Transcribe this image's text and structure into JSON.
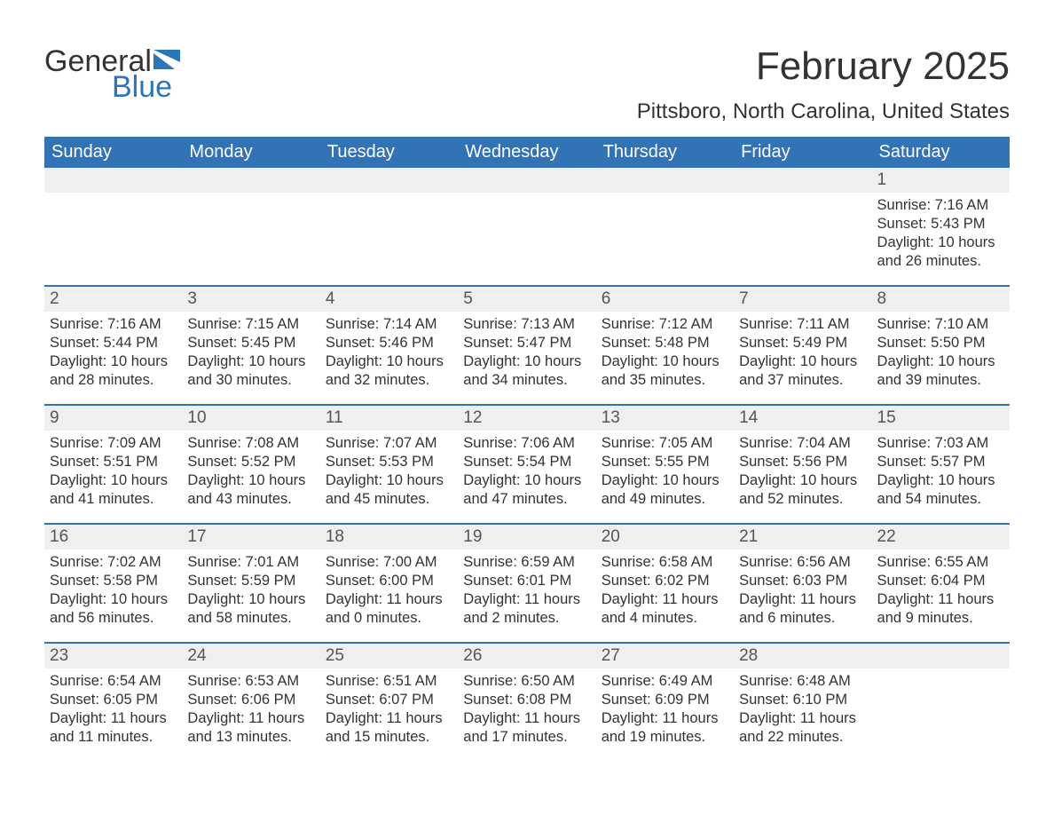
{
  "logo": {
    "text1": "General",
    "text2": "Blue",
    "flag_color": "#2a76b8"
  },
  "header": {
    "month_title": "February 2025",
    "location": "Pittsboro, North Carolina, United States"
  },
  "colors": {
    "header_bg": "#3173b4",
    "header_text": "#ffffff",
    "daynum_bg": "#efefef",
    "row_border": "#3173b4",
    "body_text": "#333333",
    "background": "#ffffff"
  },
  "day_names": [
    "Sunday",
    "Monday",
    "Tuesday",
    "Wednesday",
    "Thursday",
    "Friday",
    "Saturday"
  ],
  "weeks": [
    [
      {
        "n": "",
        "sr": "",
        "ss": "",
        "dl": ""
      },
      {
        "n": "",
        "sr": "",
        "ss": "",
        "dl": ""
      },
      {
        "n": "",
        "sr": "",
        "ss": "",
        "dl": ""
      },
      {
        "n": "",
        "sr": "",
        "ss": "",
        "dl": ""
      },
      {
        "n": "",
        "sr": "",
        "ss": "",
        "dl": ""
      },
      {
        "n": "",
        "sr": "",
        "ss": "",
        "dl": ""
      },
      {
        "n": "1",
        "sr": "Sunrise: 7:16 AM",
        "ss": "Sunset: 5:43 PM",
        "dl": "Daylight: 10 hours and 26 minutes."
      }
    ],
    [
      {
        "n": "2",
        "sr": "Sunrise: 7:16 AM",
        "ss": "Sunset: 5:44 PM",
        "dl": "Daylight: 10 hours and 28 minutes."
      },
      {
        "n": "3",
        "sr": "Sunrise: 7:15 AM",
        "ss": "Sunset: 5:45 PM",
        "dl": "Daylight: 10 hours and 30 minutes."
      },
      {
        "n": "4",
        "sr": "Sunrise: 7:14 AM",
        "ss": "Sunset: 5:46 PM",
        "dl": "Daylight: 10 hours and 32 minutes."
      },
      {
        "n": "5",
        "sr": "Sunrise: 7:13 AM",
        "ss": "Sunset: 5:47 PM",
        "dl": "Daylight: 10 hours and 34 minutes."
      },
      {
        "n": "6",
        "sr": "Sunrise: 7:12 AM",
        "ss": "Sunset: 5:48 PM",
        "dl": "Daylight: 10 hours and 35 minutes."
      },
      {
        "n": "7",
        "sr": "Sunrise: 7:11 AM",
        "ss": "Sunset: 5:49 PM",
        "dl": "Daylight: 10 hours and 37 minutes."
      },
      {
        "n": "8",
        "sr": "Sunrise: 7:10 AM",
        "ss": "Sunset: 5:50 PM",
        "dl": "Daylight: 10 hours and 39 minutes."
      }
    ],
    [
      {
        "n": "9",
        "sr": "Sunrise: 7:09 AM",
        "ss": "Sunset: 5:51 PM",
        "dl": "Daylight: 10 hours and 41 minutes."
      },
      {
        "n": "10",
        "sr": "Sunrise: 7:08 AM",
        "ss": "Sunset: 5:52 PM",
        "dl": "Daylight: 10 hours and 43 minutes."
      },
      {
        "n": "11",
        "sr": "Sunrise: 7:07 AM",
        "ss": "Sunset: 5:53 PM",
        "dl": "Daylight: 10 hours and 45 minutes."
      },
      {
        "n": "12",
        "sr": "Sunrise: 7:06 AM",
        "ss": "Sunset: 5:54 PM",
        "dl": "Daylight: 10 hours and 47 minutes."
      },
      {
        "n": "13",
        "sr": "Sunrise: 7:05 AM",
        "ss": "Sunset: 5:55 PM",
        "dl": "Daylight: 10 hours and 49 minutes."
      },
      {
        "n": "14",
        "sr": "Sunrise: 7:04 AM",
        "ss": "Sunset: 5:56 PM",
        "dl": "Daylight: 10 hours and 52 minutes."
      },
      {
        "n": "15",
        "sr": "Sunrise: 7:03 AM",
        "ss": "Sunset: 5:57 PM",
        "dl": "Daylight: 10 hours and 54 minutes."
      }
    ],
    [
      {
        "n": "16",
        "sr": "Sunrise: 7:02 AM",
        "ss": "Sunset: 5:58 PM",
        "dl": "Daylight: 10 hours and 56 minutes."
      },
      {
        "n": "17",
        "sr": "Sunrise: 7:01 AM",
        "ss": "Sunset: 5:59 PM",
        "dl": "Daylight: 10 hours and 58 minutes."
      },
      {
        "n": "18",
        "sr": "Sunrise: 7:00 AM",
        "ss": "Sunset: 6:00 PM",
        "dl": "Daylight: 11 hours and 0 minutes."
      },
      {
        "n": "19",
        "sr": "Sunrise: 6:59 AM",
        "ss": "Sunset: 6:01 PM",
        "dl": "Daylight: 11 hours and 2 minutes."
      },
      {
        "n": "20",
        "sr": "Sunrise: 6:58 AM",
        "ss": "Sunset: 6:02 PM",
        "dl": "Daylight: 11 hours and 4 minutes."
      },
      {
        "n": "21",
        "sr": "Sunrise: 6:56 AM",
        "ss": "Sunset: 6:03 PM",
        "dl": "Daylight: 11 hours and 6 minutes."
      },
      {
        "n": "22",
        "sr": "Sunrise: 6:55 AM",
        "ss": "Sunset: 6:04 PM",
        "dl": "Daylight: 11 hours and 9 minutes."
      }
    ],
    [
      {
        "n": "23",
        "sr": "Sunrise: 6:54 AM",
        "ss": "Sunset: 6:05 PM",
        "dl": "Daylight: 11 hours and 11 minutes."
      },
      {
        "n": "24",
        "sr": "Sunrise: 6:53 AM",
        "ss": "Sunset: 6:06 PM",
        "dl": "Daylight: 11 hours and 13 minutes."
      },
      {
        "n": "25",
        "sr": "Sunrise: 6:51 AM",
        "ss": "Sunset: 6:07 PM",
        "dl": "Daylight: 11 hours and 15 minutes."
      },
      {
        "n": "26",
        "sr": "Sunrise: 6:50 AM",
        "ss": "Sunset: 6:08 PM",
        "dl": "Daylight: 11 hours and 17 minutes."
      },
      {
        "n": "27",
        "sr": "Sunrise: 6:49 AM",
        "ss": "Sunset: 6:09 PM",
        "dl": "Daylight: 11 hours and 19 minutes."
      },
      {
        "n": "28",
        "sr": "Sunrise: 6:48 AM",
        "ss": "Sunset: 6:10 PM",
        "dl": "Daylight: 11 hours and 22 minutes."
      },
      {
        "n": "",
        "sr": "",
        "ss": "",
        "dl": ""
      }
    ]
  ]
}
